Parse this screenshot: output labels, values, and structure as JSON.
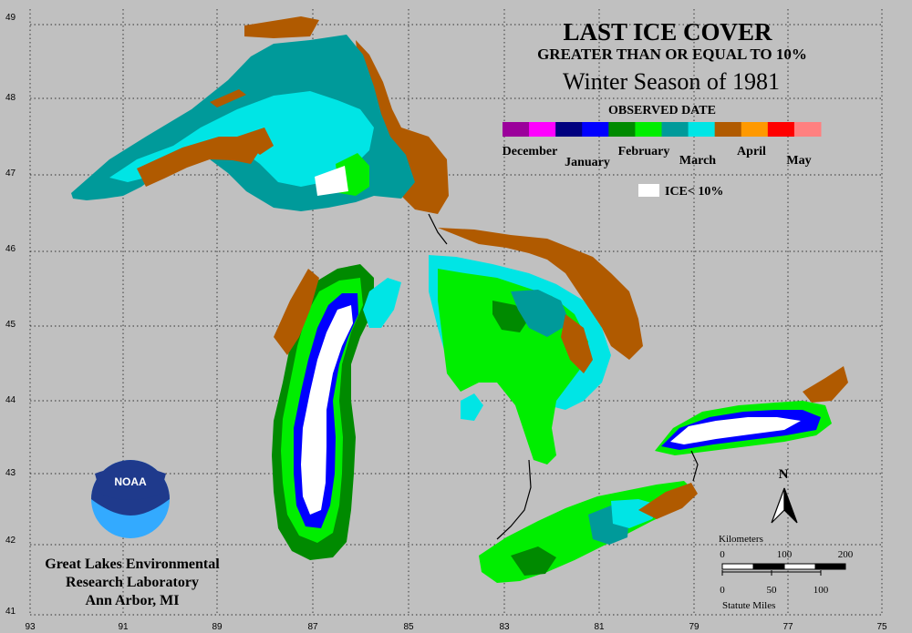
{
  "title": {
    "line1": "LAST ICE COVER",
    "line2": "GREATER THAN OR EQUAL TO 10%",
    "line3": "Winter Season of 1981"
  },
  "legend": {
    "heading": "OBSERVED DATE",
    "months": [
      {
        "label": "December",
        "colors": [
          "#9b009b",
          "#ff00ff"
        ]
      },
      {
        "label": "January",
        "colors": [
          "#00007f",
          "#0000ff"
        ]
      },
      {
        "label": "February",
        "colors": [
          "#008a00",
          "#00ee00"
        ]
      },
      {
        "label": "March",
        "colors": [
          "#009a9a",
          "#00e5e5"
        ]
      },
      {
        "label": "April",
        "colors": [
          "#b05a00",
          "#ff9900"
        ]
      },
      {
        "label": "May",
        "colors": [
          "#ff0000",
          "#ff8080"
        ]
      }
    ],
    "low_ice_label": "ICE< 10%",
    "low_ice_color": "#ffffff"
  },
  "axes": {
    "latitude_labels": [
      "49",
      "48",
      "47",
      "46",
      "45",
      "44",
      "43",
      "42",
      "41"
    ],
    "longitude_labels": [
      "93",
      "91",
      "89",
      "87",
      "85",
      "83",
      "81",
      "79",
      "77",
      "75"
    ]
  },
  "north_arrow": {
    "label": "N"
  },
  "scale_bar": {
    "km_title": "Kilometers",
    "km_ticks": [
      "0",
      "100",
      "200"
    ],
    "mi_ticks": [
      "0",
      "50",
      "100"
    ],
    "mi_title": "Statute Miles"
  },
  "agency": {
    "logo_text": "NOAA",
    "line1": "Great Lakes Environmental",
    "line2": "Research Laboratory",
    "line3": "Ann Arbor, MI"
  },
  "colors": {
    "background": "#c0c0c0",
    "land_brown": "#b05a00",
    "march_dark": "#009a9a",
    "march_light": "#00e5e5",
    "feb_dark": "#008a00",
    "feb_light": "#00ee00",
    "jan_dark": "#00007f",
    "jan_light": "#0000ff",
    "noaa_navy": "#1f3a8c",
    "noaa_sky": "#33aaff"
  }
}
